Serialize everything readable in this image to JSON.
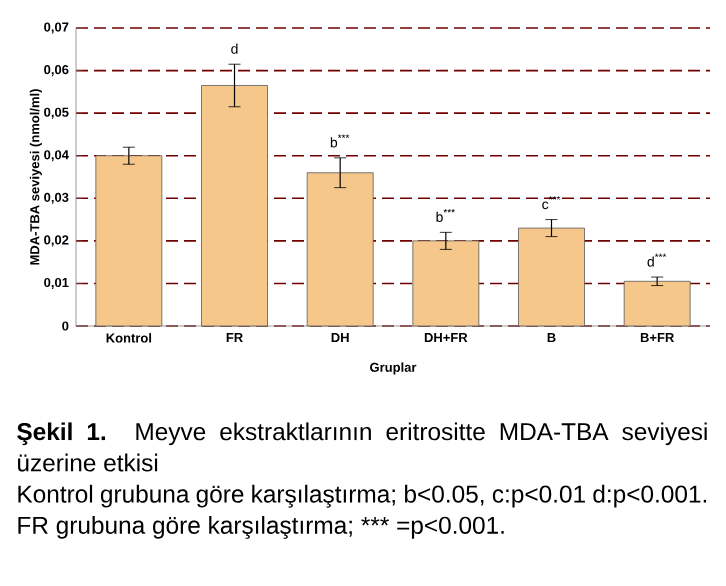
{
  "chart_data": {
    "type": "bar",
    "title": "**Şekil 1.** Meyve ekstraktlarının eritrositte MDA-TBA seviyesi üzerine etkisi",
    "xlabel": "Gruplar",
    "ylabel": "MDA-TBA seviyesi (nmol/ml)",
    "categories": [
      "Kontrol",
      "FR",
      "DH",
      "DH+FR",
      "B",
      "B+FR"
    ],
    "values": [
      0.04,
      0.0565,
      0.036,
      0.02,
      0.023,
      0.0105
    ],
    "errors": [
      0.002,
      0.005,
      0.0035,
      0.002,
      0.002,
      0.001
    ],
    "color": "#f5c78a",
    "ylim": [
      0,
      0.07
    ],
    "yticks": [
      0,
      {
        "value": 0.01,
        "label": "0,01"
      },
      {
        "value": 0.02,
        "label": "0,02"
      },
      {
        "value": 0.03,
        "label": "0,03"
      },
      {
        "value": 0.04,
        "label": "0,04"
      },
      {
        "value": 0.05,
        "label": "0,05"
      },
      {
        "value": 0.06,
        "label": "0,06"
      },
      {
        "value": 0.07,
        "label": "0,07"
      }
    ],
    "grid": "y",
    "annotations": [
      {
        "text": "d",
        "x": "FR",
        "y": 0.0615
      },
      {
        "text": "b$^{***}$",
        "x": "DH",
        "y": 0.0395
      },
      {
        "text": "b$^{***}$",
        "x": "DH+FR",
        "y": 0.022
      },
      {
        "text": "c$^{***}$",
        "x": "B",
        "y": 0.025
      },
      {
        "text": "d$^{***}$",
        "x": "B+FR",
        "y": 0.0115
      },
      "Kontrol grubuna göre karşılaştırma; b<0.05, c:p<0.01 d:p<0.001.",
      "FR grubuna göre karşılaştırma; *** =p<0.001."
    ]
  }
}
